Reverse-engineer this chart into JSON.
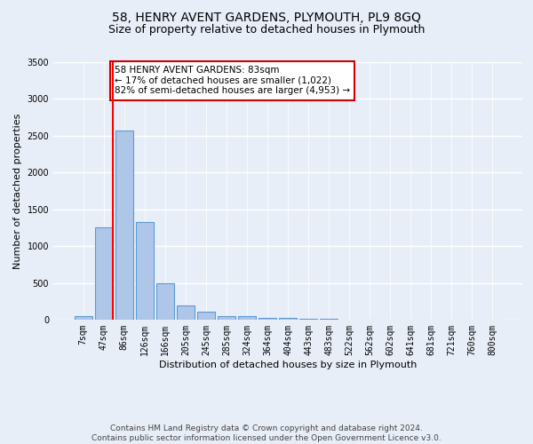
{
  "title": "58, HENRY AVENT GARDENS, PLYMOUTH, PL9 8GQ",
  "subtitle": "Size of property relative to detached houses in Plymouth",
  "xlabel": "Distribution of detached houses by size in Plymouth",
  "ylabel": "Number of detached properties",
  "bar_labels": [
    "7sqm",
    "47sqm",
    "86sqm",
    "126sqm",
    "166sqm",
    "205sqm",
    "245sqm",
    "285sqm",
    "324sqm",
    "364sqm",
    "404sqm",
    "443sqm",
    "483sqm",
    "522sqm",
    "562sqm",
    "602sqm",
    "641sqm",
    "681sqm",
    "721sqm",
    "760sqm",
    "800sqm"
  ],
  "bar_values": [
    50,
    1250,
    2570,
    1330,
    500,
    190,
    110,
    50,
    50,
    30,
    30,
    10,
    10,
    5,
    5,
    5,
    5,
    5,
    3,
    3,
    3
  ],
  "bar_color": "#aec6e8",
  "bar_edgecolor": "#5b9bd5",
  "background_color": "#e8eef8",
  "grid_color": "#ffffff",
  "red_line_index": 1,
  "annotation_text": "58 HENRY AVENT GARDENS: 83sqm\n← 17% of detached houses are smaller (1,022)\n82% of semi-detached houses are larger (4,953) →",
  "annotation_box_color": "#ffffff",
  "annotation_box_edgecolor": "#cc0000",
  "ylim": [
    0,
    3500
  ],
  "yticks": [
    0,
    500,
    1000,
    1500,
    2000,
    2500,
    3000,
    3500
  ],
  "footer_line1": "Contains HM Land Registry data © Crown copyright and database right 2024.",
  "footer_line2": "Contains public sector information licensed under the Open Government Licence v3.0.",
  "title_fontsize": 10,
  "subtitle_fontsize": 9,
  "annotation_fontsize": 7.5,
  "footer_fontsize": 6.5,
  "ylabel_fontsize": 8,
  "xlabel_fontsize": 8,
  "tick_fontsize": 7
}
